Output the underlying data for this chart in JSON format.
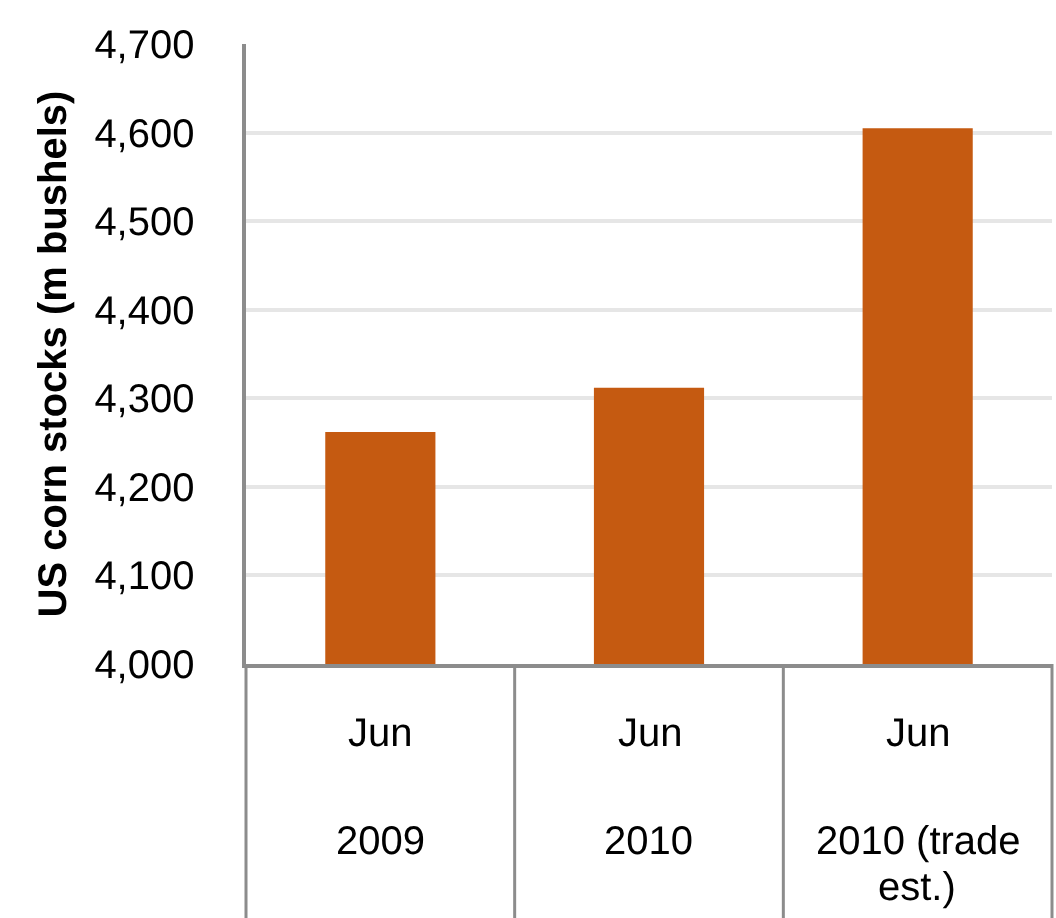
{
  "chart_data": {
    "type": "bar",
    "ylabel": "US corn stocks (m bushels)",
    "categories": [
      "Jun 2009",
      "Jun 2010",
      "Jun 2010 (trade est.)"
    ],
    "values": [
      4262,
      4312,
      4605
    ],
    "color": "#c55a11",
    "ylim": [
      4000,
      4700
    ],
    "yticks": [
      {
        "value": 4000,
        "label": "4,000"
      },
      {
        "value": 4100,
        "label": "4,100"
      },
      {
        "value": 4200,
        "label": "4,200"
      },
      {
        "value": 4300,
        "label": "4,300"
      },
      {
        "value": 4400,
        "label": "4,400"
      },
      {
        "value": 4500,
        "label": "4,500"
      },
      {
        "value": 4600,
        "label": "4,600"
      },
      {
        "value": 4700,
        "label": "4,700"
      }
    ],
    "grid": "y"
  }
}
